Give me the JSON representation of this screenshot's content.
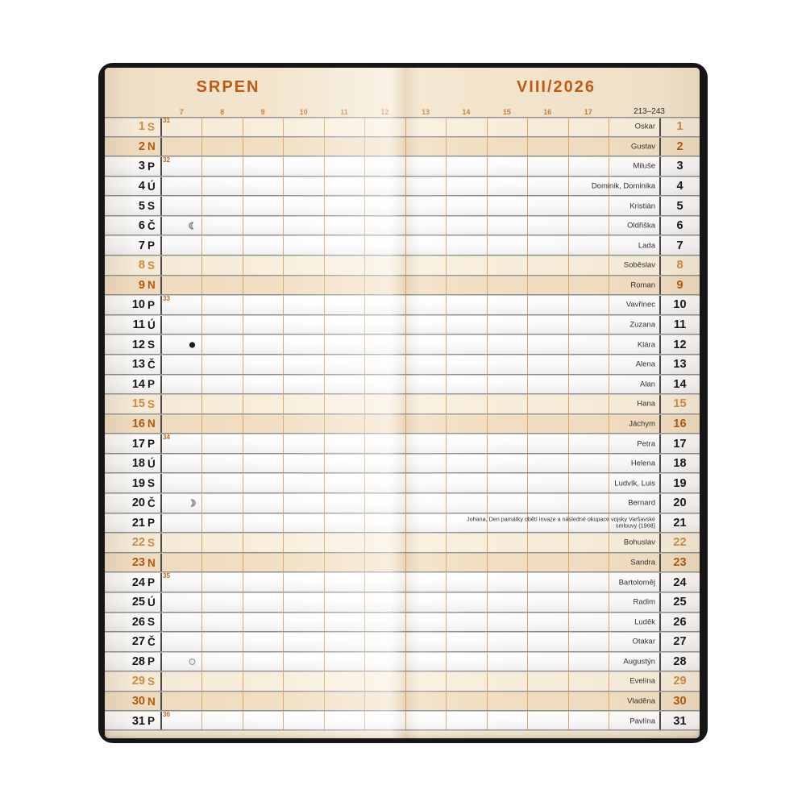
{
  "header": {
    "month_name": "SRPEN",
    "month_year": "VIII/2026",
    "day_range": "213–243",
    "hours": [
      "7",
      "8",
      "9",
      "10",
      "11",
      "12",
      "13",
      "14",
      "15",
      "16",
      "17"
    ]
  },
  "days": [
    {
      "num": 1,
      "dow": "S",
      "type": "sat",
      "week": "31",
      "name": "Oskar"
    },
    {
      "num": 2,
      "dow": "N",
      "type": "sun",
      "name": "Gustav"
    },
    {
      "num": 3,
      "dow": "P",
      "type": "wd",
      "week": "32",
      "name": "Miluše"
    },
    {
      "num": 4,
      "dow": "Ú",
      "type": "wd",
      "name": "Dominik, Dominika"
    },
    {
      "num": 5,
      "dow": "S",
      "type": "wd",
      "name": "Kristián"
    },
    {
      "num": 6,
      "dow": "Č",
      "type": "wd",
      "name": "Oldřiška",
      "moon": "last-quarter-moon"
    },
    {
      "num": 7,
      "dow": "P",
      "type": "wd",
      "name": "Lada"
    },
    {
      "num": 8,
      "dow": "S",
      "type": "sat",
      "name": "Soběslav"
    },
    {
      "num": 9,
      "dow": "N",
      "type": "sun",
      "name": "Roman"
    },
    {
      "num": 10,
      "dow": "P",
      "type": "wd",
      "week": "33",
      "name": "Vavřinec"
    },
    {
      "num": 11,
      "dow": "Ú",
      "type": "wd",
      "name": "Zuzana"
    },
    {
      "num": 12,
      "dow": "S",
      "type": "wd",
      "name": "Klára",
      "moon": "new-moon"
    },
    {
      "num": 13,
      "dow": "Č",
      "type": "wd",
      "name": "Alena"
    },
    {
      "num": 14,
      "dow": "P",
      "type": "wd",
      "name": "Alan"
    },
    {
      "num": 15,
      "dow": "S",
      "type": "sat",
      "name": "Hana"
    },
    {
      "num": 16,
      "dow": "N",
      "type": "sun",
      "name": "Jáchym"
    },
    {
      "num": 17,
      "dow": "P",
      "type": "wd",
      "week": "34",
      "name": "Petra"
    },
    {
      "num": 18,
      "dow": "Ú",
      "type": "wd",
      "name": "Helena"
    },
    {
      "num": 19,
      "dow": "S",
      "type": "wd",
      "name": "Ludvík, Luis"
    },
    {
      "num": 20,
      "dow": "Č",
      "type": "wd",
      "name": "Bernard",
      "moon": "first-quarter-moon"
    },
    {
      "num": 21,
      "dow": "P",
      "type": "wd",
      "name": "Johana, Den památky obětí invaze a následné okupace vojsky Varšavské smlouvy (1968)",
      "name_small": true
    },
    {
      "num": 22,
      "dow": "S",
      "type": "sat",
      "name": "Bohuslav"
    },
    {
      "num": 23,
      "dow": "N",
      "type": "sun",
      "name": "Sandra"
    },
    {
      "num": 24,
      "dow": "P",
      "type": "wd",
      "week": "35",
      "name": "Bartoloměj"
    },
    {
      "num": 25,
      "dow": "Ú",
      "type": "wd",
      "name": "Radim"
    },
    {
      "num": 26,
      "dow": "S",
      "type": "wd",
      "name": "Luděk"
    },
    {
      "num": 27,
      "dow": "Č",
      "type": "wd",
      "name": "Otakar"
    },
    {
      "num": 28,
      "dow": "P",
      "type": "wd",
      "name": "Augustýn",
      "moon": "full-moon"
    },
    {
      "num": 29,
      "dow": "S",
      "type": "sat",
      "name": "Evelína"
    },
    {
      "num": 30,
      "dow": "N",
      "type": "sun",
      "name": "Vladěna"
    },
    {
      "num": 31,
      "dow": "P",
      "type": "wd",
      "week": "36",
      "name": "Pavlína"
    }
  ],
  "colors": {
    "accent_orange": "#bf5a12",
    "hour_label": "#ca7c36",
    "saturday_text": "#d08b41",
    "sunday_text": "#b25909",
    "saturday_row_bg": "#f8eedb",
    "sunday_row_bg": "#f2dfc2",
    "header_bg": "#f3e5cd",
    "grid_line_orange": "#dba76b",
    "grid_line_dark": "#4a4a4a",
    "row_separator": "#8e8e8e",
    "cover_frame": "#161616"
  }
}
